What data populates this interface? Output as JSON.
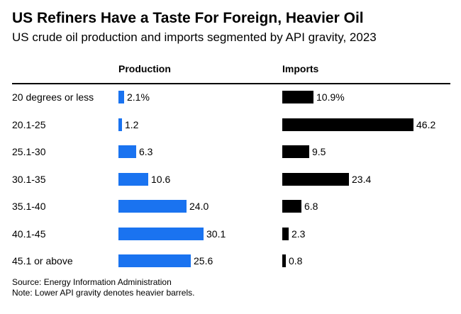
{
  "title": "US Refiners Have a Taste For Foreign, Heavier Oil",
  "subtitle": "US crude oil production and imports segmented by API gravity, 2023",
  "source": "Source: Energy Information Administration",
  "note": "Note: Lower API gravity denotes heavier barrels.",
  "colors": {
    "production": "#1a73f0",
    "imports": "#000000"
  },
  "chart_data": {
    "type": "bar",
    "title": "US Refiners Have a Taste For Foreign, Heavier Oil",
    "subtitle": "US crude oil production and imports segmented by API gravity, 2023",
    "categories": [
      "20 degrees or less",
      "20.1-25",
      "25.1-30",
      "30.1-35",
      "35.1-40",
      "40.1-45",
      "45.1 or above"
    ],
    "series": [
      {
        "name": "Production",
        "values": [
          2.1,
          1.2,
          6.3,
          10.6,
          24.0,
          30.1,
          25.6
        ],
        "labels": [
          "2.1%",
          "1.2",
          "6.3",
          "10.6",
          "24.0",
          "30.1",
          "25.6"
        ]
      },
      {
        "name": "Imports",
        "values": [
          10.9,
          46.2,
          9.5,
          23.4,
          6.8,
          2.3,
          0.8
        ],
        "labels": [
          "10.9%",
          "46.2",
          "9.5",
          "23.4",
          "6.8",
          "2.3",
          "0.8"
        ]
      }
    ],
    "unit": "%",
    "grid": false,
    "legend": "column headers"
  }
}
